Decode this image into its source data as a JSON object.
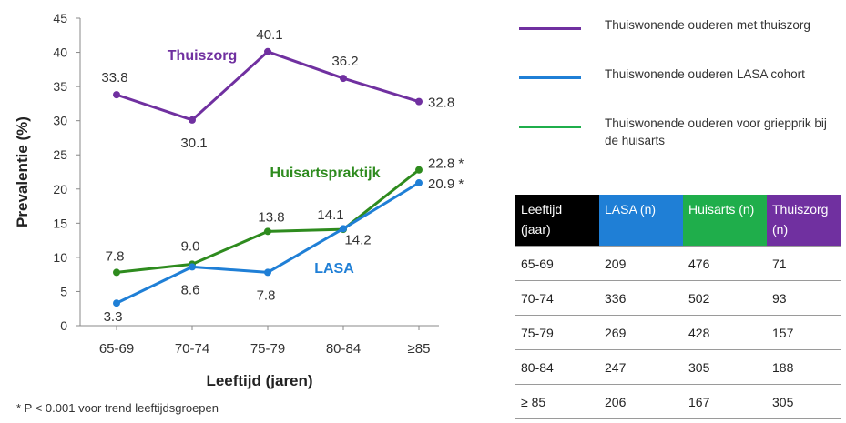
{
  "chart_data": {
    "type": "line",
    "xlabel": "Leeftijd (jaren)",
    "ylabel": "Prevalentie  (%)",
    "ylim": [
      0,
      45
    ],
    "yticks": [
      0,
      5,
      10,
      15,
      20,
      25,
      30,
      35,
      40,
      45
    ],
    "categories": [
      "65-69",
      "70-74",
      "75-79",
      "80-84",
      "≥85"
    ],
    "series": [
      {
        "name": "Thuiszorg",
        "color": "#7030a0",
        "values": [
          33.8,
          30.1,
          40.1,
          36.2,
          32.8
        ],
        "labels": [
          "33.8",
          "30.1",
          "40.1",
          "36.2",
          "32.8"
        ]
      },
      {
        "name": "Huisartspraktijk",
        "color": "#2e8b1e",
        "values": [
          7.8,
          9.0,
          13.8,
          14.1,
          22.8
        ],
        "labels": [
          "7.8",
          "9.0",
          "13.8",
          "14.1",
          "22.8 *"
        ]
      },
      {
        "name": "LASA",
        "color": "#1f7fd6",
        "values": [
          3.3,
          8.6,
          7.8,
          14.2,
          20.9
        ],
        "labels": [
          "3.3",
          "8.6",
          "7.8",
          "14.2",
          "20.9 *"
        ]
      }
    ],
    "legend": {
      "position": "right",
      "entries": [
        {
          "label": "Thuiswonende ouderen met thuiszorg",
          "color": "#7030a0"
        },
        {
          "label": "Thuiswonende ouderen LASA cohort",
          "color": "#1f7fd6"
        },
        {
          "label": "Thuiswonende ouderen voor griepprik bij de huisarts",
          "color": "#1fae4b"
        }
      ]
    },
    "footnote": "* P < 0.001 voor trend leeftijdsgroepen"
  },
  "table": {
    "headers": [
      {
        "label": "Leeftijd (jaar)",
        "color": "#000000"
      },
      {
        "label": "LASA (n)",
        "color": "#1f7fd6"
      },
      {
        "label": "Huisarts (n)",
        "color": "#1fae4b"
      },
      {
        "label": "Thuiszorg (n)",
        "color": "#7030a0"
      }
    ],
    "rows": [
      [
        "65-69",
        "209",
        "476",
        "71"
      ],
      [
        "70-74",
        "336",
        "502",
        "93"
      ],
      [
        "75-79",
        "269",
        "428",
        "157"
      ],
      [
        "80-84",
        "247",
        "305",
        "188"
      ],
      [
        "≥ 85",
        "206",
        "167",
        "305"
      ]
    ]
  }
}
